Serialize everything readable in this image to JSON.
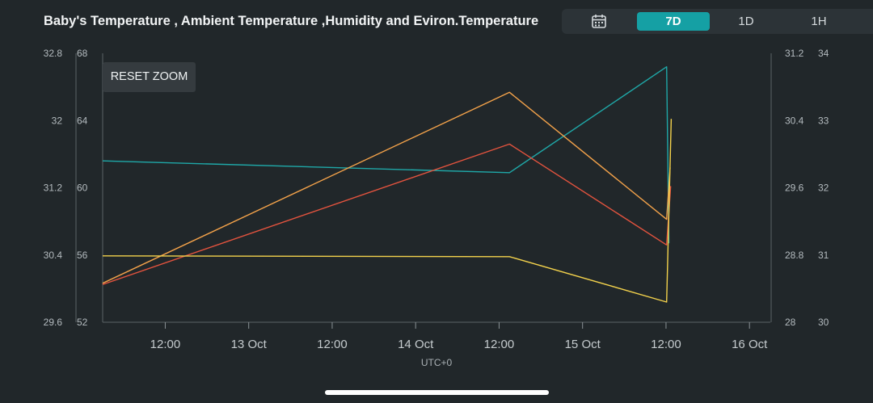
{
  "header": {
    "title": "Baby's Temperature , Ambient Temperature ,Humidity and Eviron.Temperature"
  },
  "range_selector": {
    "calendar_icon": "calendar-icon",
    "options": [
      {
        "label": "7D",
        "active": true
      },
      {
        "label": "1D",
        "active": false
      },
      {
        "label": "1H",
        "active": false
      }
    ]
  },
  "reset_zoom_label": "RESET ZOOM",
  "timezone_label": "UTC+0",
  "colors": {
    "background": "#21272a",
    "accent": "#15a0a4",
    "series_teal": "#1fa8a8",
    "series_orange": "#f3a24a",
    "series_red": "#e2533e",
    "series_yellow": "#f3d24c"
  },
  "chart_data": {
    "type": "line",
    "title": "Baby's Temperature , Ambient Temperature ,Humidity and Eviron.Temperature",
    "x_axis": {
      "type": "datetime",
      "timezone": "UTC+0",
      "range": [
        "2024-10-12T03:00",
        "2024-10-16T03:00"
      ],
      "ticks": [
        {
          "t": "2024-10-12T12:00",
          "label": "12:00"
        },
        {
          "t": "2024-10-13T00:00",
          "label": "13 Oct"
        },
        {
          "t": "2024-10-13T12:00",
          "label": "12:00"
        },
        {
          "t": "2024-10-14T00:00",
          "label": "14 Oct"
        },
        {
          "t": "2024-10-14T12:00",
          "label": "12:00"
        },
        {
          "t": "2024-10-15T00:00",
          "label": "15 Oct"
        },
        {
          "t": "2024-10-15T12:00",
          "label": "12:00"
        },
        {
          "t": "2024-10-16T00:00",
          "label": "16 Oct"
        }
      ]
    },
    "y_axes": [
      {
        "id": "left_outer",
        "side": "left",
        "min": 29.6,
        "max": 32.8,
        "ticks": [
          "32.8",
          "32",
          "31.2",
          "30.4",
          "29.6"
        ]
      },
      {
        "id": "left_inner",
        "side": "left",
        "min": 52,
        "max": 68,
        "ticks": [
          "68",
          "64",
          "60",
          "56",
          "52"
        ]
      },
      {
        "id": "right_inner",
        "side": "right",
        "min": 28,
        "max": 31.2,
        "ticks": [
          "31.2",
          "30.4",
          "29.6",
          "28.8",
          "28"
        ]
      },
      {
        "id": "right_outer",
        "side": "right",
        "min": 30,
        "max": 34,
        "ticks": [
          "34",
          "33",
          "32",
          "31",
          "30"
        ]
      }
    ],
    "series": [
      {
        "color": "#1fa8a8",
        "axis": "right_inner",
        "points": [
          {
            "t": "2024-10-12T03:00",
            "y": 29.92
          },
          {
            "t": "2024-10-14T13:30",
            "y": 29.78
          },
          {
            "t": "2024-10-15T12:05",
            "y": 31.04
          },
          {
            "t": "2024-10-15T12:25",
            "y": 28.94
          }
        ]
      },
      {
        "color": "#e2533e",
        "axis": "left_outer",
        "points": [
          {
            "t": "2024-10-12T03:00",
            "y": 30.05
          },
          {
            "t": "2024-10-14T13:30",
            "y": 31.72
          },
          {
            "t": "2024-10-15T12:05",
            "y": 30.52
          },
          {
            "t": "2024-10-15T12:40",
            "y": 31.22
          }
        ]
      },
      {
        "color": "#f3a24a",
        "axis": "right_outer",
        "points": [
          {
            "t": "2024-10-12T03:00",
            "y": 30.58
          },
          {
            "t": "2024-10-14T13:30",
            "y": 33.42
          },
          {
            "t": "2024-10-15T12:05",
            "y": 31.53
          },
          {
            "t": "2024-10-15T12:35",
            "y": 32.3
          }
        ]
      },
      {
        "color": "#f3d24c",
        "axis": "left_inner",
        "points": [
          {
            "t": "2024-10-12T03:00",
            "y": 55.95
          },
          {
            "t": "2024-10-14T13:30",
            "y": 55.9
          },
          {
            "t": "2024-10-15T12:05",
            "y": 53.2
          },
          {
            "t": "2024-10-15T12:45",
            "y": 64.1
          }
        ]
      }
    ]
  }
}
